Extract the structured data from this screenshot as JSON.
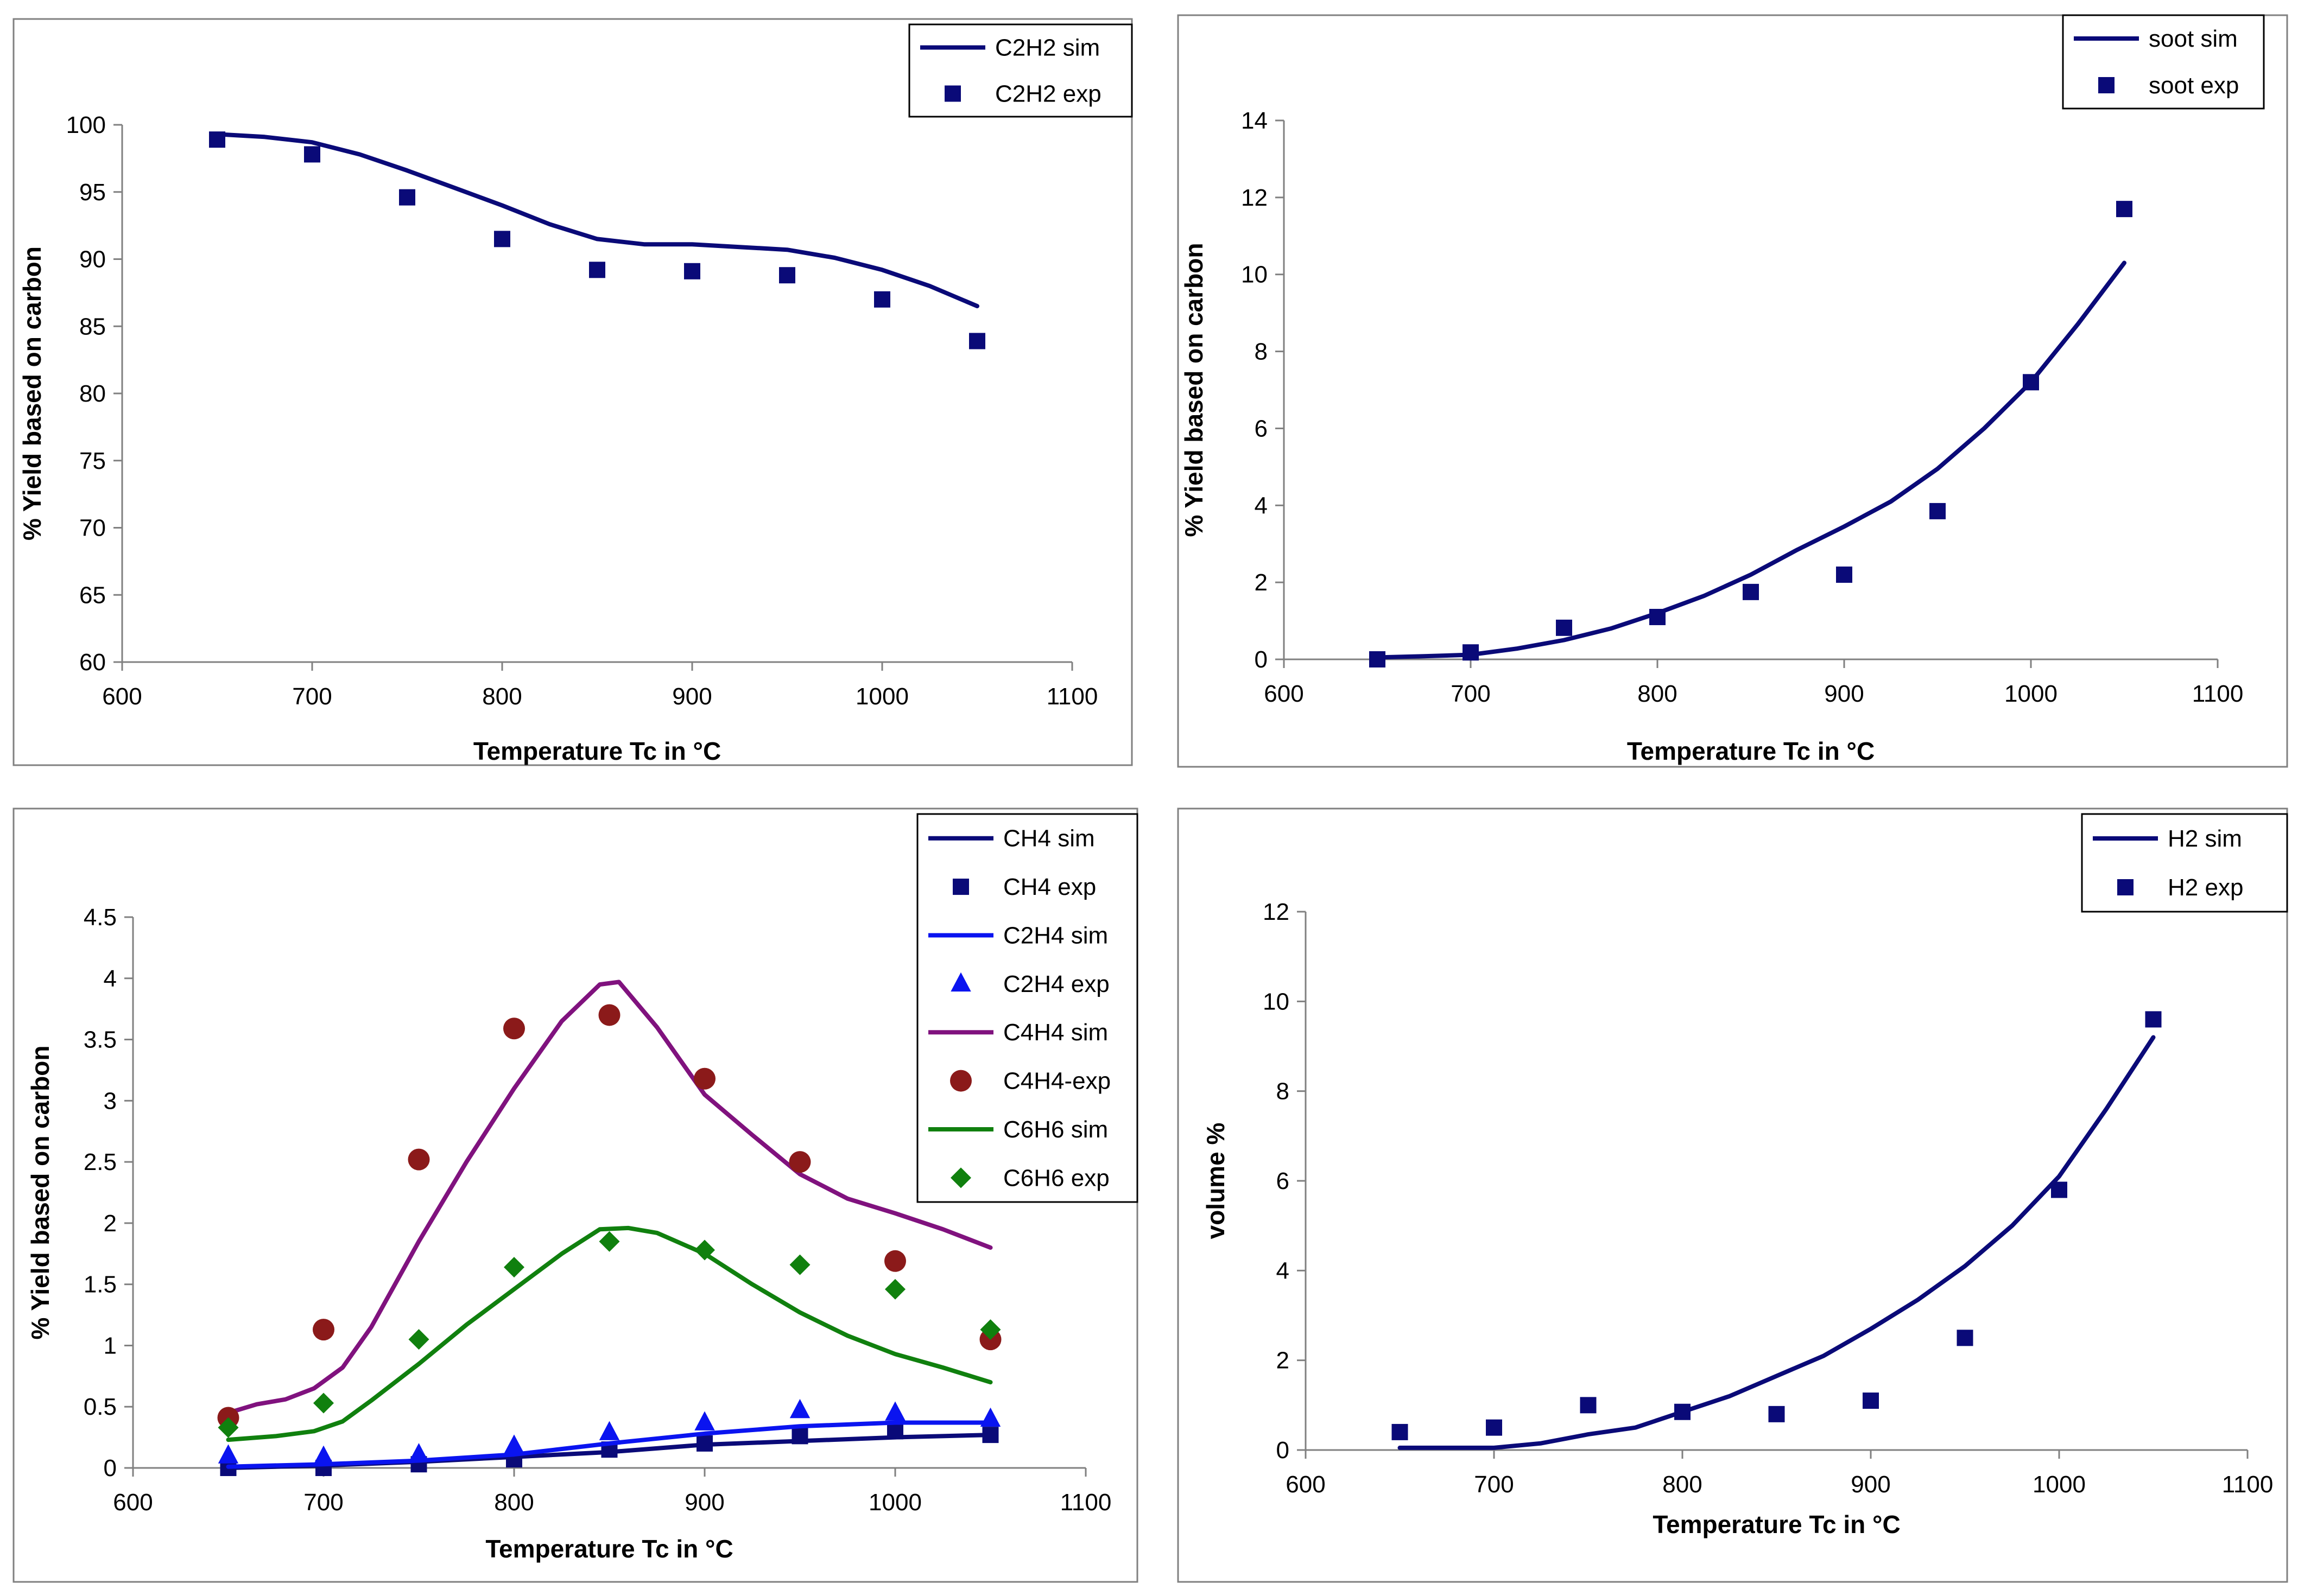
{
  "colors": {
    "navy": "#0A0A78",
    "blue": "#0A14F0",
    "purple": "#80127E",
    "darkred": "#8B1A1A",
    "green": "#10800E",
    "axis": "#808080"
  },
  "chart_data": [
    {
      "id": "c2h2",
      "type": "line+scatter",
      "xlabel": "Temperature Tc in °C",
      "ylabel": "% Yield based on carbon",
      "xlim": [
        600,
        1100
      ],
      "ylim": [
        60,
        100
      ],
      "xticks": [
        600,
        700,
        800,
        900,
        1000,
        1100
      ],
      "yticks": [
        60,
        65,
        70,
        75,
        80,
        85,
        90,
        95,
        100
      ],
      "xtick_labels": [
        "600",
        "700",
        "800",
        "900",
        "1000",
        "1100"
      ],
      "ytick_labels": [
        "60",
        "65",
        "70",
        "75",
        "80",
        "85",
        "90",
        "95",
        "100"
      ],
      "series": [
        {
          "name": "C2H2 sim",
          "kind": "line",
          "color": "#0A0A78",
          "x": [
            650,
            675,
            700,
            725,
            750,
            775,
            800,
            825,
            850,
            875,
            900,
            925,
            950,
            975,
            1000,
            1025,
            1050
          ],
          "y": [
            99.3,
            99.1,
            98.7,
            97.8,
            96.6,
            95.3,
            94.0,
            92.6,
            91.5,
            91.1,
            91.1,
            90.9,
            90.7,
            90.1,
            89.2,
            88.0,
            86.5
          ]
        },
        {
          "name": "C2H2 exp",
          "kind": "scatter",
          "marker": "square",
          "color": "#0A0A78",
          "x": [
            650,
            700,
            750,
            800,
            850,
            900,
            950,
            1000,
            1050
          ],
          "y": [
            98.9,
            97.8,
            94.6,
            91.5,
            89.2,
            89.1,
            88.8,
            87.0,
            83.9
          ]
        }
      ]
    },
    {
      "id": "soot",
      "type": "line+scatter",
      "xlabel": "Temperature Tc in °C",
      "ylabel": "% Yield based on carbon",
      "xlim": [
        600,
        1100
      ],
      "ylim": [
        0,
        14
      ],
      "xticks": [
        600,
        700,
        800,
        900,
        1000,
        1100
      ],
      "yticks": [
        0,
        2,
        4,
        6,
        8,
        10,
        12,
        14
      ],
      "xtick_labels": [
        "600",
        "700",
        "800",
        "900",
        "1000",
        "1100"
      ],
      "ytick_labels": [
        "0",
        "2",
        "4",
        "6",
        "8",
        "10",
        "12",
        "14"
      ],
      "series": [
        {
          "name": "soot sim",
          "kind": "line",
          "color": "#0A0A78",
          "x": [
            650,
            675,
            700,
            725,
            750,
            775,
            800,
            825,
            850,
            875,
            900,
            925,
            950,
            975,
            1000,
            1025,
            1050
          ],
          "y": [
            0.05,
            0.08,
            0.12,
            0.28,
            0.5,
            0.8,
            1.2,
            1.65,
            2.2,
            2.85,
            3.45,
            4.1,
            4.95,
            6.0,
            7.2,
            8.7,
            10.3
          ]
        },
        {
          "name": "soot exp",
          "kind": "scatter",
          "marker": "square",
          "color": "#0A0A78",
          "x": [
            650,
            700,
            750,
            800,
            850,
            900,
            950,
            1000,
            1050
          ],
          "y": [
            0.0,
            0.18,
            0.82,
            1.1,
            1.75,
            2.2,
            3.85,
            7.2,
            11.7
          ]
        }
      ]
    },
    {
      "id": "hydrocarbons",
      "type": "line+scatter",
      "xlabel": "Temperature Tc in °C",
      "ylabel": "% Yield based on carbon",
      "xlim": [
        600,
        1100
      ],
      "ylim": [
        0,
        4.5
      ],
      "xticks": [
        600,
        700,
        800,
        900,
        1000,
        1100
      ],
      "yticks": [
        0,
        0.5,
        1,
        1.5,
        2,
        2.5,
        3,
        3.5,
        4,
        4.5
      ],
      "xtick_labels": [
        "600",
        "700",
        "800",
        "900",
        "1000",
        "1100"
      ],
      "ytick_labels": [
        "0",
        "0.5",
        "1",
        "1.5",
        "2",
        "2.5",
        "3",
        "3.5",
        "4",
        "4.5"
      ],
      "series": [
        {
          "name": "CH4 sim",
          "kind": "line",
          "color": "#0A0A78",
          "x": [
            650,
            700,
            750,
            800,
            850,
            900,
            950,
            1000,
            1050
          ],
          "y": [
            0.0,
            0.02,
            0.05,
            0.09,
            0.13,
            0.19,
            0.22,
            0.25,
            0.27
          ]
        },
        {
          "name": "CH4 exp",
          "kind": "scatter",
          "marker": "square",
          "color": "#0A0A78",
          "x": [
            650,
            700,
            750,
            800,
            850,
            900,
            950,
            1000,
            1050
          ],
          "y": [
            0.0,
            0.0,
            0.03,
            0.07,
            0.15,
            0.2,
            0.26,
            0.3,
            0.27
          ]
        },
        {
          "name": "C2H4 sim",
          "kind": "line",
          "color": "#0A14F0",
          "x": [
            650,
            700,
            750,
            800,
            850,
            900,
            950,
            1000,
            1050
          ],
          "y": [
            0.01,
            0.03,
            0.06,
            0.11,
            0.2,
            0.28,
            0.34,
            0.37,
            0.37
          ]
        },
        {
          "name": "C2H4 exp",
          "kind": "scatter",
          "marker": "triangle",
          "color": "#0A14F0",
          "x": [
            650,
            700,
            750,
            800,
            850,
            900,
            950,
            1000,
            1050
          ],
          "y": [
            0.1,
            0.09,
            0.11,
            0.18,
            0.29,
            0.37,
            0.47,
            0.45,
            0.4
          ]
        },
        {
          "name": "C4H4 sim",
          "kind": "line",
          "color": "#80127E",
          "x": [
            650,
            665,
            680,
            695,
            710,
            725,
            750,
            775,
            800,
            825,
            845,
            855,
            875,
            900,
            925,
            950,
            975,
            1000,
            1025,
            1050
          ],
          "y": [
            0.45,
            0.52,
            0.56,
            0.65,
            0.82,
            1.15,
            1.85,
            2.5,
            3.1,
            3.65,
            3.95,
            3.97,
            3.6,
            3.05,
            2.72,
            2.4,
            2.2,
            2.08,
            1.95,
            1.8
          ]
        },
        {
          "name": "C4H4-exp",
          "kind": "scatter",
          "marker": "circle",
          "color": "#8B1A1A",
          "x": [
            650,
            700,
            750,
            800,
            850,
            900,
            950,
            1000,
            1050
          ],
          "y": [
            0.41,
            1.13,
            2.52,
            3.59,
            3.7,
            3.18,
            2.5,
            1.69,
            1.05
          ]
        },
        {
          "name": "C6H6 sim",
          "kind": "line",
          "color": "#10800E",
          "x": [
            650,
            675,
            695,
            710,
            725,
            750,
            775,
            800,
            825,
            845,
            860,
            875,
            900,
            925,
            950,
            975,
            1000,
            1025,
            1050
          ],
          "y": [
            0.23,
            0.26,
            0.3,
            0.38,
            0.55,
            0.85,
            1.17,
            1.46,
            1.75,
            1.95,
            1.96,
            1.92,
            1.75,
            1.5,
            1.27,
            1.08,
            0.93,
            0.82,
            0.7
          ]
        },
        {
          "name": "C6H6 exp",
          "kind": "scatter",
          "marker": "diamond",
          "color": "#10800E",
          "x": [
            650,
            700,
            750,
            800,
            850,
            900,
            950,
            1000,
            1050
          ],
          "y": [
            0.33,
            0.53,
            1.05,
            1.64,
            1.85,
            1.78,
            1.66,
            1.46,
            1.13
          ]
        }
      ]
    },
    {
      "id": "h2",
      "type": "line+scatter",
      "xlabel": "Temperature Tc in °C",
      "ylabel": "volume %",
      "xlim": [
        600,
        1100
      ],
      "ylim": [
        0,
        12
      ],
      "xticks": [
        600,
        700,
        800,
        900,
        1000,
        1100
      ],
      "yticks": [
        0,
        2,
        4,
        6,
        8,
        10,
        12
      ],
      "xtick_labels": [
        "600",
        "700",
        "800",
        "900",
        "1000",
        "1100"
      ],
      "ytick_labels": [
        "0",
        "2",
        "4",
        "6",
        "8",
        "10",
        "12"
      ],
      "series": [
        {
          "name": "H2 sim",
          "kind": "line",
          "color": "#0A0A78",
          "x": [
            650,
            675,
            700,
            725,
            750,
            775,
            800,
            825,
            850,
            875,
            900,
            925,
            950,
            975,
            1000,
            1025,
            1050
          ],
          "y": [
            0.05,
            0.05,
            0.05,
            0.15,
            0.35,
            0.5,
            0.85,
            1.2,
            1.65,
            2.1,
            2.7,
            3.35,
            4.1,
            5.0,
            6.1,
            7.6,
            9.2
          ]
        },
        {
          "name": "H2 exp",
          "kind": "scatter",
          "marker": "square",
          "color": "#0A0A78",
          "x": [
            650,
            700,
            750,
            800,
            850,
            900,
            950,
            1000,
            1050
          ],
          "y": [
            0.4,
            0.5,
            1.0,
            0.85,
            0.8,
            1.1,
            2.5,
            5.8,
            9.6
          ]
        }
      ]
    }
  ]
}
